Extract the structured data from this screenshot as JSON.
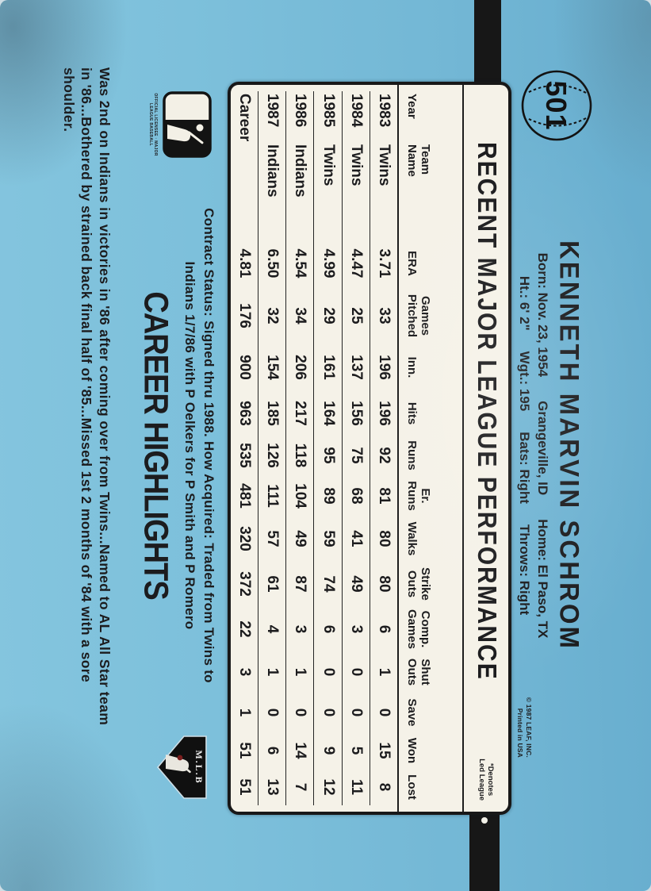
{
  "card": {
    "number": "501",
    "player_name": "KENNETH MARVIN SCHROM",
    "bio_line1": [
      "Born: Nov. 23, 1954",
      "Grangeville, ID",
      "Home: El Paso, TX"
    ],
    "bio_line2": [
      "Ht.: 6' 2\"",
      "Wgt.: 195",
      "Bats: Right",
      "Throws: Right"
    ],
    "copyright_line1": "© 1987 LEAF, INC.",
    "copyright_line2": "Printed in USA"
  },
  "stats": {
    "title": "RECENT MAJOR LEAGUE PERFORMANCE",
    "footnote_line1": "*Denotes",
    "footnote_line2": "Led League",
    "columns": [
      {
        "top": "",
        "bot": "Year"
      },
      {
        "top": "Team",
        "bot": "Name"
      },
      {
        "top": "",
        "bot": "ERA"
      },
      {
        "top": "Games",
        "bot": "Pitched"
      },
      {
        "top": "",
        "bot": "Inn."
      },
      {
        "top": "",
        "bot": "Hits"
      },
      {
        "top": "",
        "bot": "Runs"
      },
      {
        "top": "Er.",
        "bot": "Runs"
      },
      {
        "top": "",
        "bot": "Walks"
      },
      {
        "top": "Strike",
        "bot": "Outs"
      },
      {
        "top": "Comp.",
        "bot": "Games"
      },
      {
        "top": "Shut",
        "bot": "Outs"
      },
      {
        "top": "",
        "bot": "Save"
      },
      {
        "top": "",
        "bot": "Won"
      },
      {
        "top": "",
        "bot": "Lost"
      }
    ],
    "rows": [
      [
        "1983",
        "Twins",
        "3.71",
        "33",
        "196",
        "196",
        "92",
        "81",
        "80",
        "80",
        "6",
        "1",
        "0",
        "15",
        "8"
      ],
      [
        "1984",
        "Twins",
        "4.47",
        "25",
        "137",
        "156",
        "75",
        "68",
        "41",
        "49",
        "3",
        "0",
        "0",
        "5",
        "11"
      ],
      [
        "1985",
        "Twins",
        "4.99",
        "29",
        "161",
        "164",
        "95",
        "89",
        "59",
        "74",
        "6",
        "0",
        "0",
        "9",
        "12"
      ],
      [
        "1986",
        "Indians",
        "4.54",
        "34",
        "206",
        "217",
        "118",
        "104",
        "49",
        "87",
        "3",
        "1",
        "0",
        "14",
        "7"
      ],
      [
        "1987",
        "Indians",
        "6.50",
        "32",
        "154",
        "185",
        "126",
        "111",
        "57",
        "61",
        "4",
        "1",
        "0",
        "6",
        "13"
      ],
      [
        "Career",
        "",
        "4.81",
        "176",
        "900",
        "963",
        "535",
        "481",
        "320",
        "372",
        "22",
        "3",
        "1",
        "51",
        "51"
      ]
    ]
  },
  "contract": {
    "line1": "Contract Status: Signed thru 1988. How Acquired: Traded from Twins to",
    "line2": "Indians 1/7/86 with P Oelkers for P Smith and P Romero"
  },
  "highlights": {
    "heading": "CAREER HIGHLIGHTS",
    "line1": "Was 2nd on Indians in victories in '86 after coming over from Twins...Named to AL All Star team",
    "line2": "in '86...Bothered by strained back final half of '85...Missed 1st 2 months of '84 with a sore",
    "line3": "shoulder."
  },
  "logos": {
    "mlb_caption": "OFFICIAL LICENSEE · MAJOR LEAGUE BASEBALL",
    "mlbpa_text": "M.L.B"
  },
  "colors": {
    "card_blue": "#74b7d5",
    "table_bg": "#f5f2e8",
    "ink": "#1c1c1e"
  }
}
